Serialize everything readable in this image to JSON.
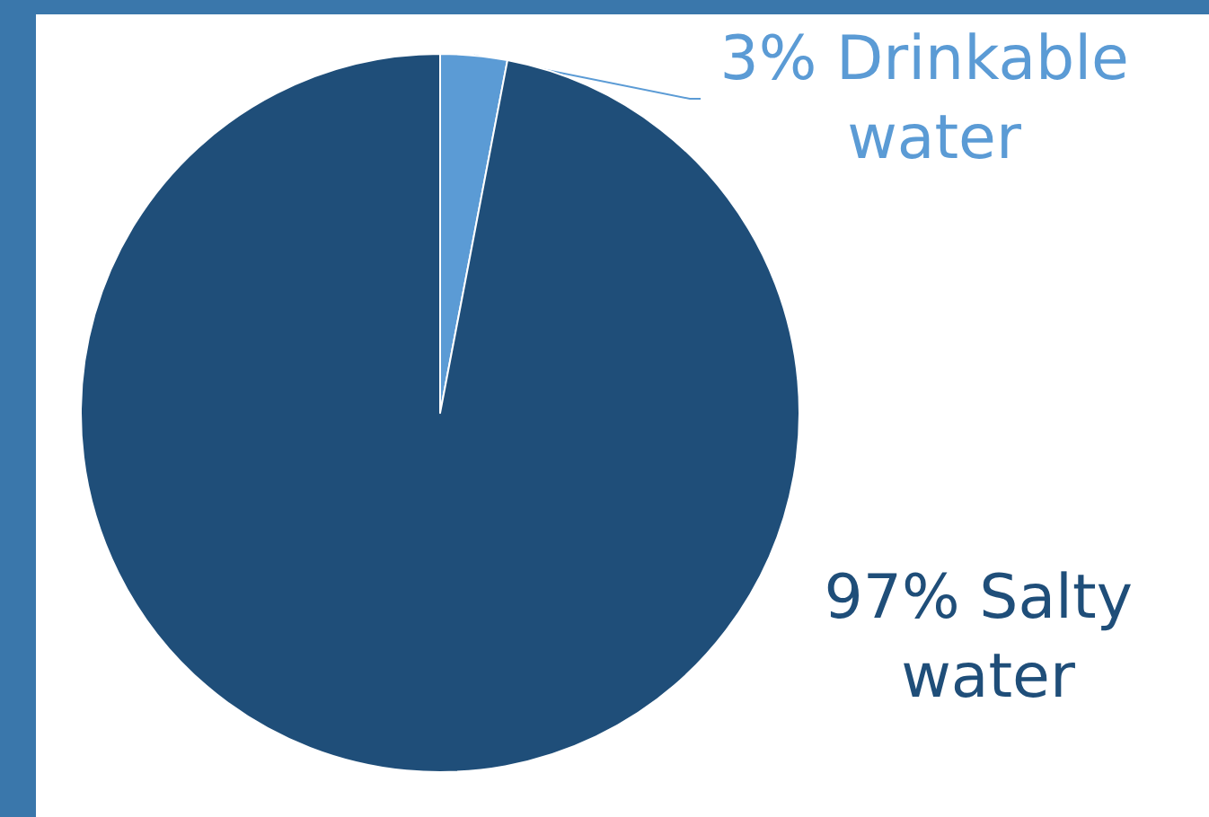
{
  "chart_data": {
    "type": "pie",
    "categories": [
      "Drinkable water",
      "Salty water"
    ],
    "values": [
      3,
      97
    ],
    "colors": [
      "#5b9bd5",
      "#1f4e79"
    ],
    "value_labels": [
      "3%",
      "97%"
    ],
    "legend": false
  }
}
